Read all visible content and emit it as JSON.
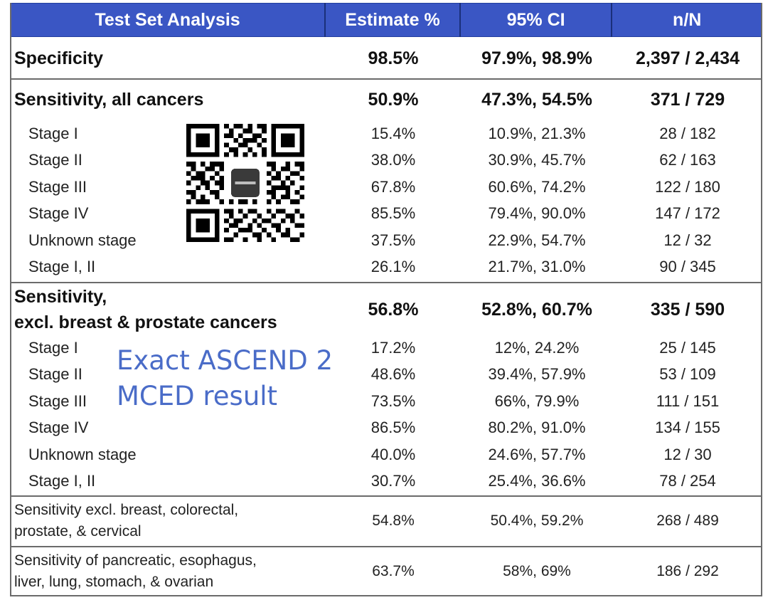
{
  "header": {
    "col1": "Test Set Analysis",
    "col2": "Estimate %",
    "col3": "95% CI",
    "col4": "n/N"
  },
  "rows": [
    {
      "label": "Specificity",
      "estimate": "98.5%",
      "ci": "97.9%, 98.9%",
      "nN": "2,397 / 2,434"
    },
    {
      "label": "Sensitivity, all cancers",
      "estimate": "50.9%",
      "ci": "47.3%, 54.5%",
      "nN": "371 / 729"
    },
    {
      "label": "Stage I",
      "estimate": "15.4%",
      "ci": "10.9%, 21.3%",
      "nN": "28 / 182"
    },
    {
      "label": "Stage II",
      "estimate": "38.0%",
      "ci": "30.9%, 45.7%",
      "nN": "62 / 163"
    },
    {
      "label": "Stage III",
      "estimate": "67.8%",
      "ci": "60.6%, 74.2%",
      "nN": "122 / 180"
    },
    {
      "label": "Stage IV",
      "estimate": "85.5%",
      "ci": "79.4%, 90.0%",
      "nN": "147 / 172"
    },
    {
      "label": "Unknown stage",
      "estimate": "37.5%",
      "ci": "22.9%, 54.7%",
      "nN": "12 / 32"
    },
    {
      "label": "Stage I, II",
      "estimate": "26.1%",
      "ci": "21.7%, 31.0%",
      "nN": "90 / 345"
    },
    {
      "label_line1": "Sensitivity,",
      "label_line2": "excl. breast & prostate cancers",
      "estimate": "56.8%",
      "ci": "52.8%, 60.7%",
      "nN": "335 / 590"
    },
    {
      "label": "Stage I",
      "estimate": "17.2%",
      "ci": "12%, 24.2%",
      "nN": "25 / 145"
    },
    {
      "label": "Stage II",
      "estimate": "48.6%",
      "ci": "39.4%, 57.9%",
      "nN": "53 / 109"
    },
    {
      "label": "Stage III",
      "estimate": "73.5%",
      "ci": "66%, 79.9%",
      "nN": "111 / 151"
    },
    {
      "label": "Stage IV",
      "estimate": "86.5%",
      "ci": "80.2%, 91.0%",
      "nN": "134 / 155"
    },
    {
      "label": "Unknown stage",
      "estimate": "40.0%",
      "ci": "24.6%, 57.7%",
      "nN": "12 / 30"
    },
    {
      "label": "Stage I, II",
      "estimate": "30.7%",
      "ci": "25.4%, 36.6%",
      "nN": "78 / 254"
    },
    {
      "label_line1": "Sensitivity excl. breast, colorectal,",
      "label_line2": "prostate, & cervical",
      "estimate": "54.8%",
      "ci": "50.4%, 59.2%",
      "nN": "268 / 489"
    },
    {
      "label_line1": "Sensitivity of pancreatic, esophagus,",
      "label_line2": "liver, lung, stomach, & ovarian",
      "estimate": "63.7%",
      "ci": "58%, 69%",
      "nN": "186 / 292"
    }
  ],
  "overlay": {
    "line1": "Exact ASCEND 2",
    "line2": "MCED result"
  },
  "qr_icon": "qr-code-icon",
  "colors": {
    "header_bg": "#3a56c4",
    "header_text": "#ffffff",
    "overlay_text": "#4a6cc8",
    "grid_line": "#6b6b6b"
  }
}
